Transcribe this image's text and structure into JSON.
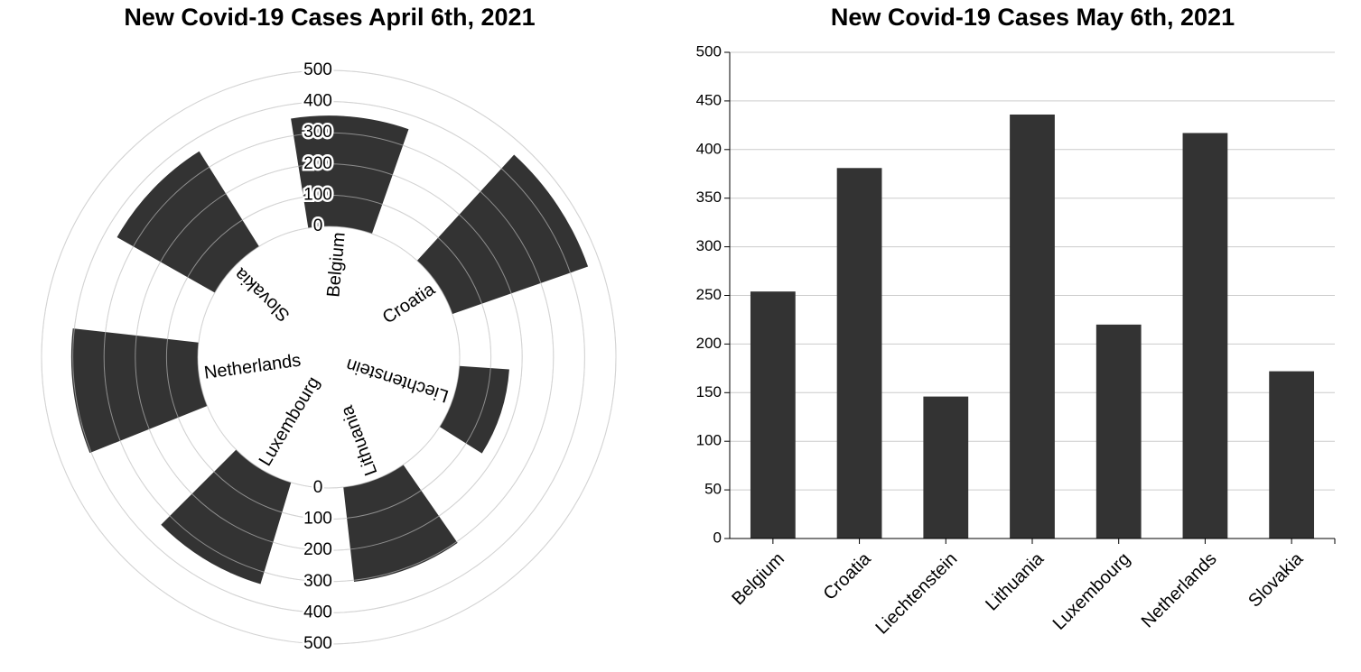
{
  "chart_data": [
    {
      "type": "radial-bar",
      "title": "New Covid-19 Cases April 6th, 2021",
      "categories": [
        "Belgium",
        "Croatia",
        "Liechtenstein",
        "Lithuania",
        "Luxembourg",
        "Netherlands",
        "Slovakia"
      ],
      "values": [
        355,
        460,
        160,
        305,
        340,
        405,
        360
      ],
      "radial_ticks": [
        0,
        100,
        200,
        300,
        400,
        500
      ],
      "ylim": [
        0,
        500
      ],
      "grid": true,
      "bar_color": "#333333",
      "grid_color": "#cccccc"
    },
    {
      "type": "bar",
      "title": "New Covid-19 Cases May 6th, 2021",
      "categories": [
        "Belgium",
        "Croatia",
        "Liechtenstein",
        "Lithuania",
        "Luxembourg",
        "Netherlands",
        "Slovakia"
      ],
      "values": [
        254,
        381,
        146,
        436,
        220,
        417,
        172
      ],
      "ylim": [
        0,
        500
      ],
      "y_ticks": [
        0,
        50,
        100,
        150,
        200,
        250,
        300,
        350,
        400,
        450,
        500
      ],
      "grid": true,
      "bar_color": "#333333",
      "grid_color": "#cccccc"
    }
  ]
}
